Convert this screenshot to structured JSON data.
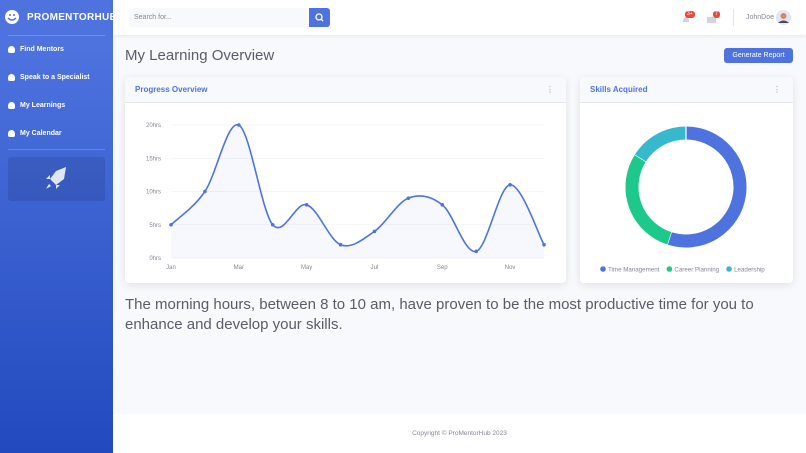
{
  "sidebar": {
    "brand": "PROMENTORHUB",
    "menu": [
      "Find Mentors",
      "Speak to a Specialist",
      "My Learnings",
      "My Calendar"
    ]
  },
  "topbar": {
    "search_placeholder": "Search for...",
    "alerts_badge": "3+",
    "messages_badge": "7",
    "user": "JohnDoe"
  },
  "page_title": "My Learning Overview",
  "generate_button": "Generate Report",
  "insight": "The morning hours, between 8 to 10 am, have proven to be the most productive time for you to enhance and develop your skills.",
  "footer": "Copyright © ProMentorHub 2023",
  "chart_data": [
    {
      "type": "line",
      "title": "Progress Overview",
      "categories": [
        "Jan",
        null,
        "Mar",
        null,
        "May",
        null,
        "Jul",
        null,
        "Sep",
        null,
        "Nov",
        null
      ],
      "values": [
        5,
        10,
        20,
        5,
        8,
        2,
        4,
        9,
        8,
        1,
        11,
        2
      ],
      "color": "#4e73df",
      "ylim": [
        0,
        20
      ],
      "yticks": [
        {
          "value": 0,
          "label": "0hrs"
        },
        {
          "value": 5,
          "label": "5hrs"
        },
        {
          "value": 10,
          "label": "10hrs"
        },
        {
          "value": 15,
          "label": "15hrs"
        },
        {
          "value": 20,
          "label": "20hrs"
        }
      ],
      "grid": true
    },
    {
      "type": "pie",
      "title": "Skills Acquired",
      "categories": [
        "Time Management",
        "Career Planning",
        "Leadership"
      ],
      "values": [
        55,
        29,
        16
      ],
      "colors": [
        "#4e73df",
        "#1cc88a",
        "#36b9cc"
      ],
      "donut": true,
      "legend": "bottom"
    }
  ]
}
